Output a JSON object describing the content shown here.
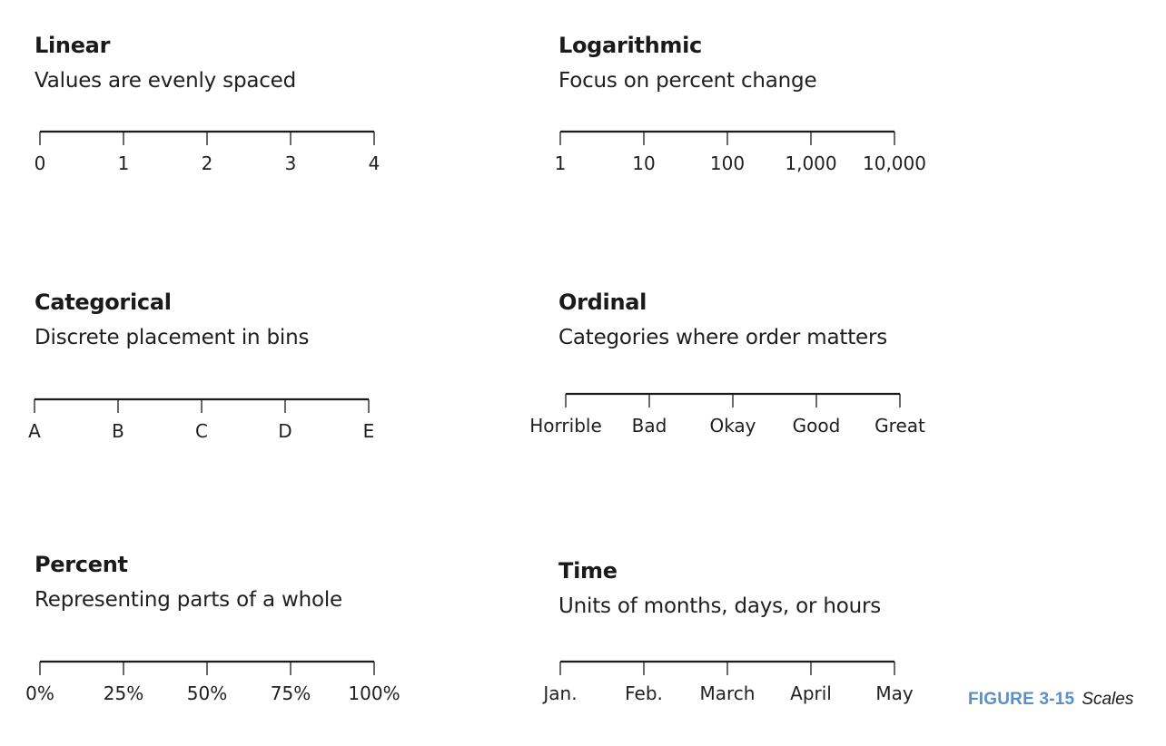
{
  "scales": [
    {
      "id": "linear",
      "title": "Linear",
      "description": "Values are evenly spaced",
      "ticks": [
        "0",
        "1",
        "2",
        "3",
        "4"
      ]
    },
    {
      "id": "logarithmic",
      "title": "Logarithmic",
      "description": "Focus on percent change",
      "ticks": [
        "1",
        "10",
        "100",
        "1,000",
        "10,000"
      ]
    },
    {
      "id": "categorical",
      "title": "Categorical",
      "description": "Discrete placement in bins",
      "ticks": [
        "A",
        "B",
        "C",
        "D",
        "E"
      ]
    },
    {
      "id": "ordinal",
      "title": "Ordinal",
      "description": "Categories where order matters",
      "ticks": [
        "Horrible",
        "Bad",
        "Okay",
        "Good",
        "Great"
      ]
    },
    {
      "id": "percent",
      "title": "Percent",
      "description": "Representing parts of a whole",
      "ticks": [
        "0%",
        "25%",
        "50%",
        "75%",
        "100%"
      ]
    },
    {
      "id": "time",
      "title": "Time",
      "description": "Units of months, days, or hours",
      "ticks": [
        "Jan.",
        "Feb.",
        "March",
        "April",
        "May"
      ]
    }
  ],
  "caption": {
    "label": "FIGURE 3-15",
    "text": "Scales"
  },
  "colors": {
    "caption_label": "#5b8fc8",
    "ink": "#1a1a1a"
  }
}
